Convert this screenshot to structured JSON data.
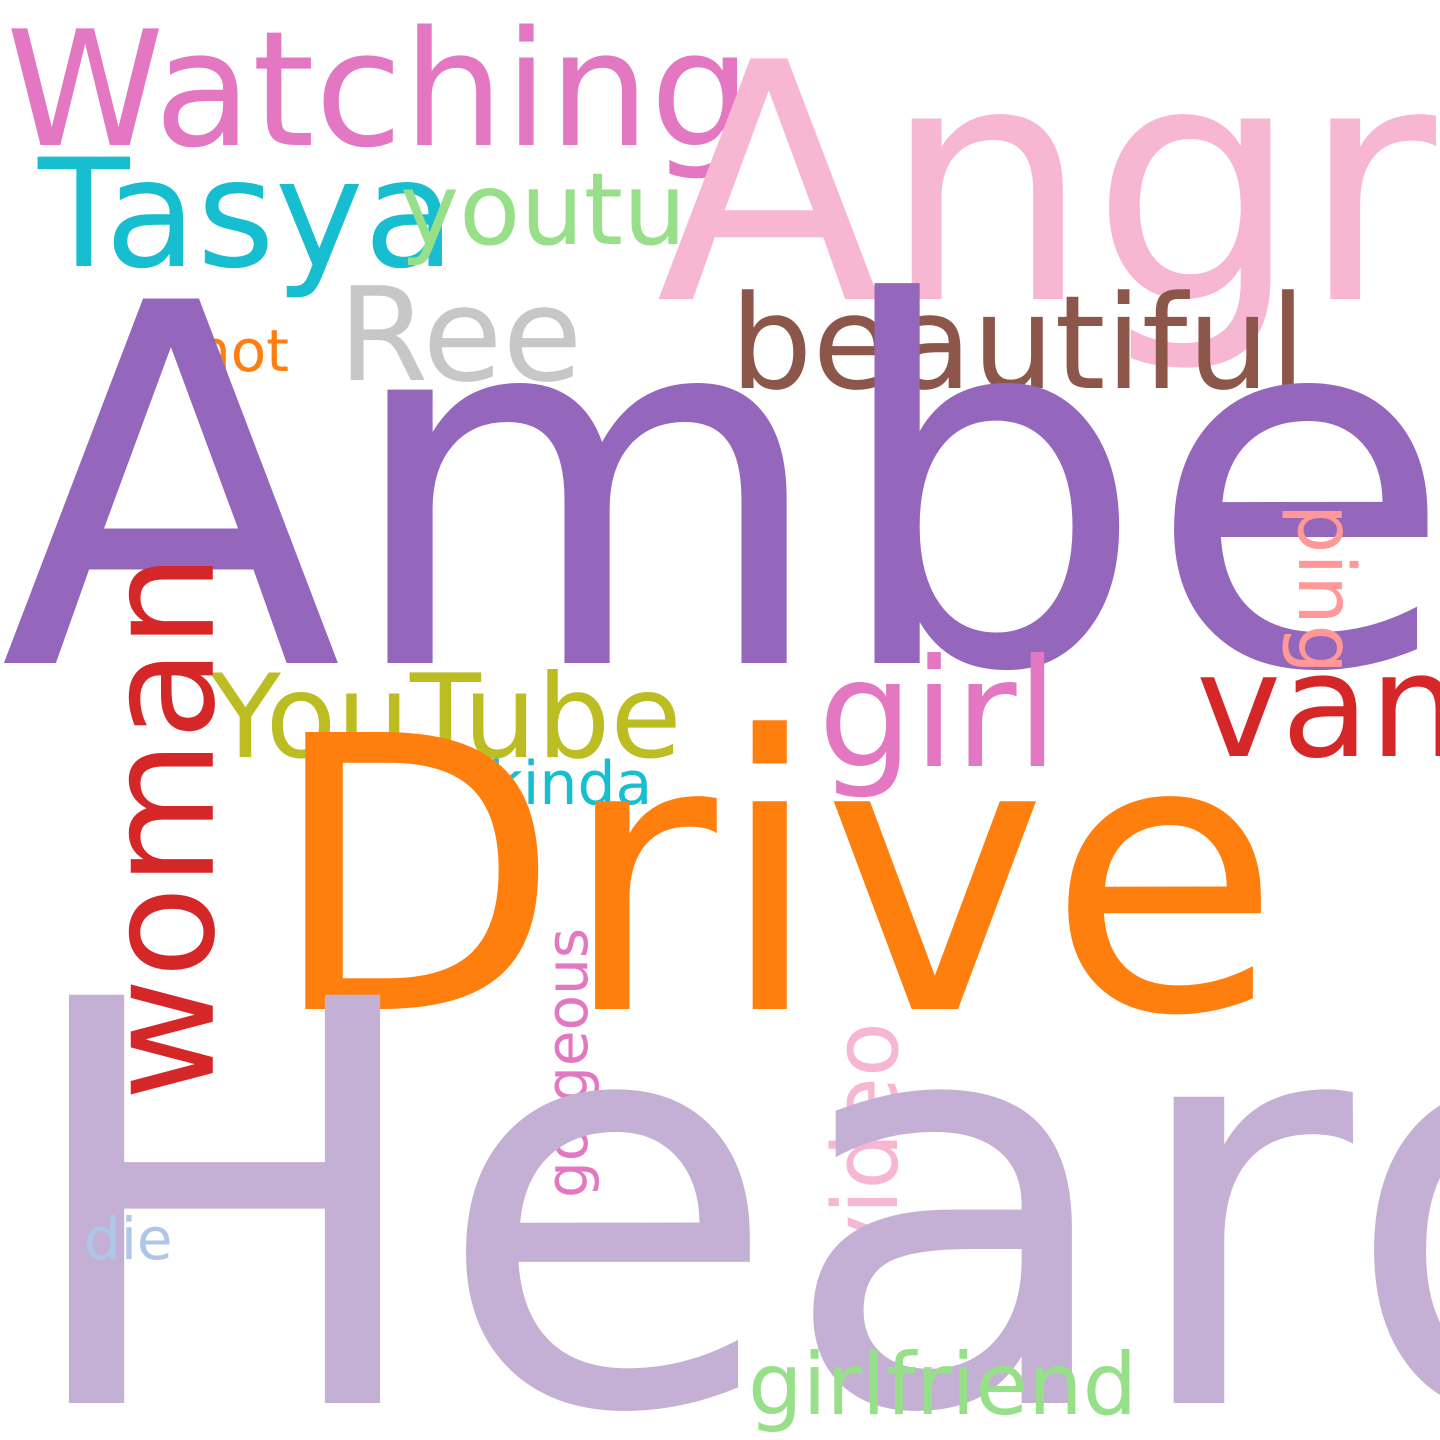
{
  "words": [
    {
      "key": "watching",
      "text": "Watching",
      "color": "#e377c2"
    },
    {
      "key": "angry",
      "text": "Angry",
      "color": "#f7b6d2"
    },
    {
      "key": "tasya",
      "text": "Tasya",
      "color": "#17becf"
    },
    {
      "key": "youtu",
      "text": "youtu",
      "color": "#98df8a"
    },
    {
      "key": "ree",
      "text": "Ree",
      "color": "#c7c7c7"
    },
    {
      "key": "beautiful",
      "text": "beautiful",
      "color": "#8c564b"
    },
    {
      "key": "hot",
      "text": "hot",
      "color": "#ff7f0e"
    },
    {
      "key": "amber",
      "text": "Amber",
      "color": "#9467bd"
    },
    {
      "key": "ping",
      "text": "ping",
      "color": "#ff9896"
    },
    {
      "key": "youtube",
      "text": "YouTube",
      "color": "#bcbd22"
    },
    {
      "key": "girl",
      "text": "girl",
      "color": "#e377c2"
    },
    {
      "key": "van",
      "text": "van",
      "color": "#d62728"
    },
    {
      "key": "woman",
      "text": "woman",
      "color": "#d62728"
    },
    {
      "key": "kinda",
      "text": "kinda",
      "color": "#17becf"
    },
    {
      "key": "drive",
      "text": "Drive",
      "color": "#ff7f0e"
    },
    {
      "key": "gorgeous",
      "text": "gorgeous",
      "color": "#e377c2"
    },
    {
      "key": "video",
      "text": "video",
      "color": "#f7b6d2"
    },
    {
      "key": "heard",
      "text": "Heard",
      "color": "#c5b0d5"
    },
    {
      "key": "die",
      "text": "die",
      "color": "#aec7e8"
    },
    {
      "key": "girlfriend",
      "text": "girlfriend",
      "color": "#98df8a"
    }
  ]
}
